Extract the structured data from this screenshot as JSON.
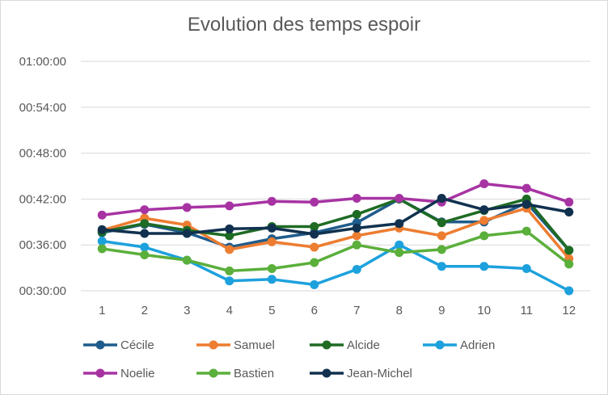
{
  "chart_data": {
    "type": "line",
    "title": "Evolution des temps espoir",
    "xlabel": "",
    "ylabel": "",
    "categories": [
      "1",
      "2",
      "3",
      "4",
      "5",
      "6",
      "7",
      "8",
      "9",
      "10",
      "11",
      "12"
    ],
    "y_ticks": [
      "00:30:00",
      "00:36:00",
      "00:42:00",
      "00:48:00",
      "00:54:00",
      "01:00:00"
    ],
    "ylim_minutes": [
      30,
      60
    ],
    "y_unit": "minutes",
    "grid": true,
    "legend_position": "bottom",
    "series": [
      {
        "name": "Cécile",
        "color": "#1F5C8B",
        "values": [
          37.6,
          38.7,
          37.6,
          35.7,
          36.8,
          37.6,
          38.9,
          42.0,
          39.0,
          39.0,
          41.5,
          35.3
        ]
      },
      {
        "name": "Samuel",
        "color": "#ED7D31",
        "values": [
          37.9,
          39.5,
          38.6,
          35.4,
          36.4,
          35.7,
          37.2,
          38.2,
          37.2,
          39.2,
          40.8,
          34.2
        ]
      },
      {
        "name": "Alcide",
        "color": "#1E6B24",
        "values": [
          37.7,
          38.8,
          37.9,
          37.2,
          38.4,
          38.4,
          40.0,
          42.0,
          38.9,
          40.5,
          42.0,
          35.3
        ]
      },
      {
        "name": "Adrien",
        "color": "#1DA1DD",
        "values": [
          36.5,
          35.7,
          34.0,
          31.3,
          31.5,
          30.8,
          32.8,
          36.0,
          33.2,
          33.2,
          32.9,
          30.0
        ]
      },
      {
        "name": "Noelie",
        "color": "#A733A3",
        "values": [
          39.9,
          40.6,
          40.9,
          41.1,
          41.7,
          41.6,
          42.1,
          42.1,
          41.6,
          44.0,
          43.4,
          41.6
        ]
      },
      {
        "name": "Bastien",
        "color": "#5BAF3B",
        "values": [
          35.5,
          34.7,
          34.0,
          32.6,
          32.9,
          33.7,
          36.0,
          35.0,
          35.4,
          37.2,
          37.8,
          33.5
        ]
      },
      {
        "name": "Jean-Michel",
        "color": "#11314F",
        "values": [
          38.0,
          37.5,
          37.5,
          38.1,
          38.2,
          37.4,
          38.2,
          38.8,
          42.1,
          40.6,
          41.3,
          40.3
        ]
      }
    ]
  }
}
